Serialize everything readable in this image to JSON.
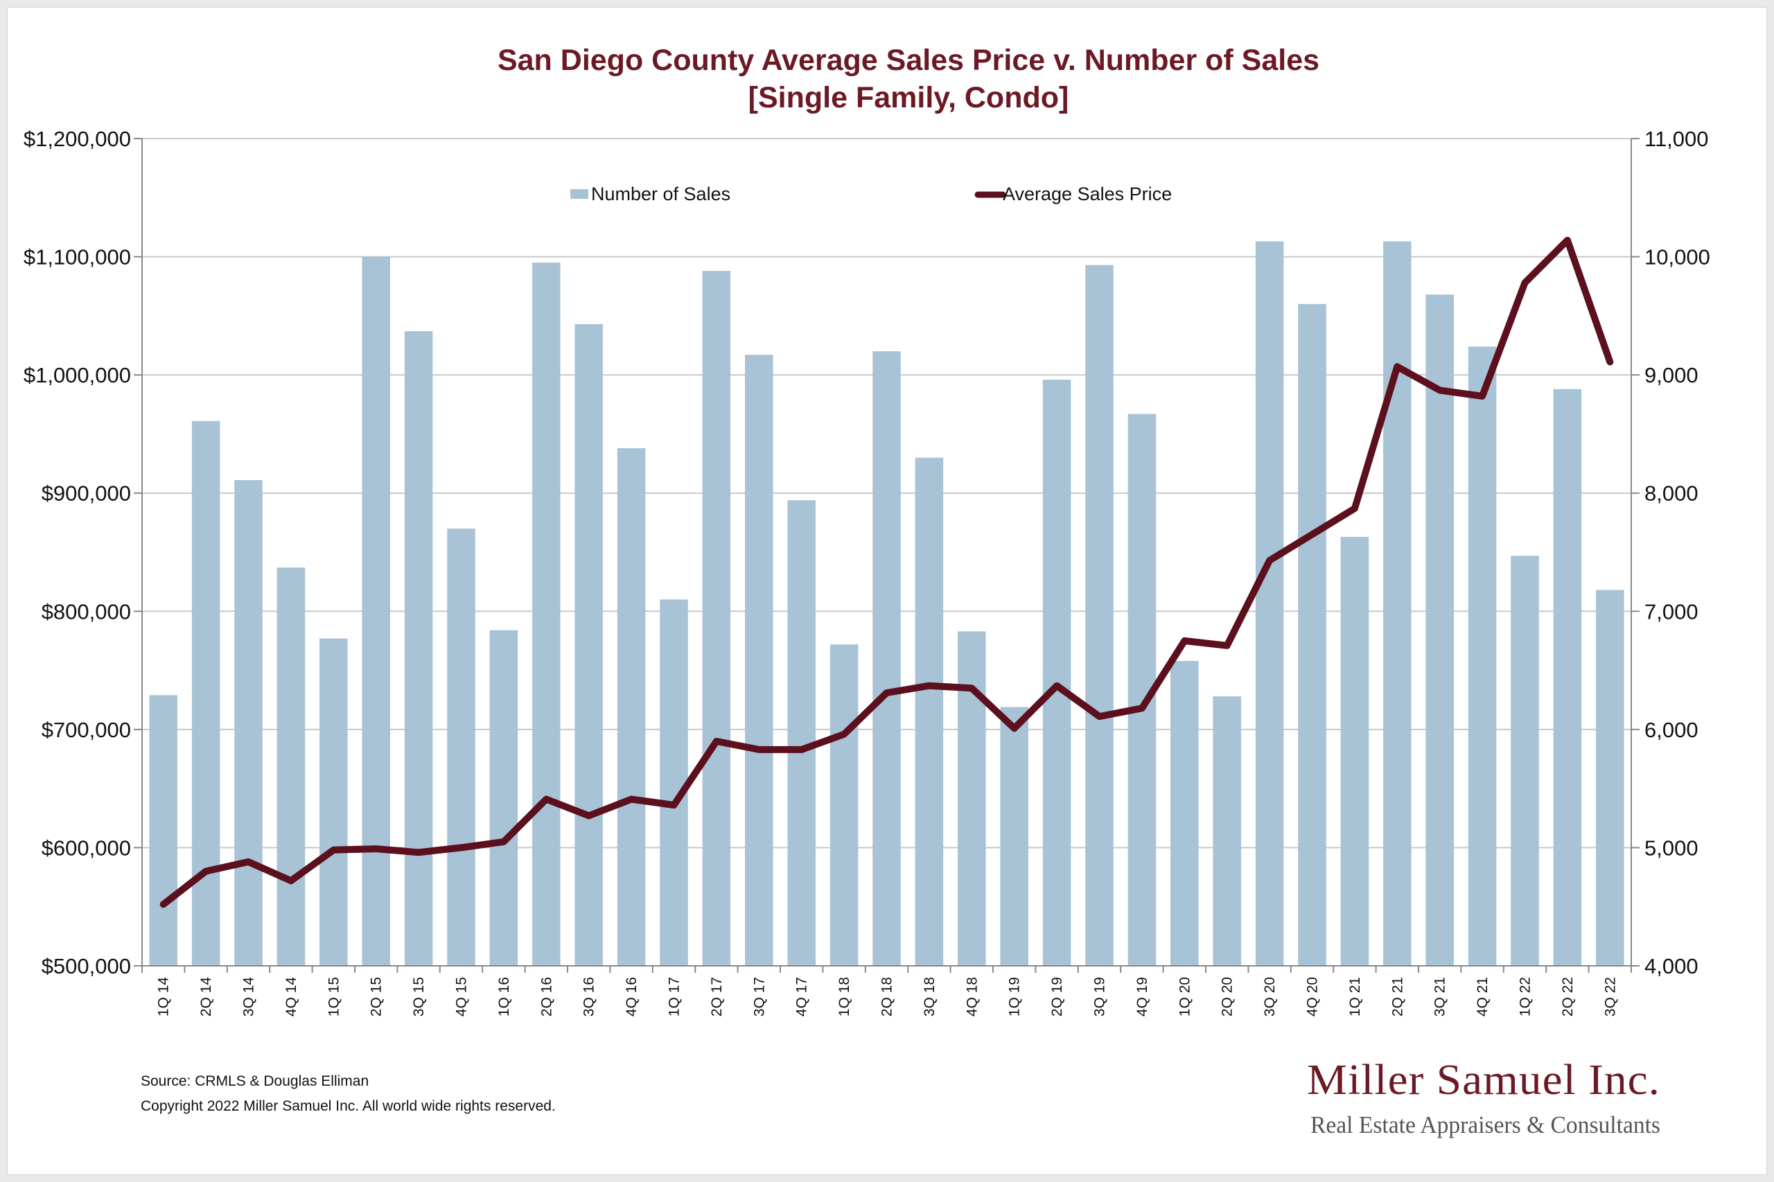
{
  "colors": {
    "bar": "#a8c2d6",
    "line": "#5c0f1c",
    "title": "#6b1a25",
    "grid": "#c9c9c9"
  },
  "chart_data": {
    "type": "bar",
    "title": "San Diego County Average Sales Price v. Number of Sales",
    "subtitle": "[Single Family, Condo]",
    "categories": [
      "1Q 14",
      "2Q 14",
      "3Q 14",
      "4Q 14",
      "1Q 15",
      "2Q 15",
      "3Q 15",
      "4Q 15",
      "1Q 16",
      "2Q 16",
      "3Q 16",
      "4Q 16",
      "1Q 17",
      "2Q 17",
      "3Q 17",
      "4Q 17",
      "1Q 18",
      "2Q 18",
      "3Q 18",
      "4Q 18",
      "1Q 19",
      "2Q 19",
      "3Q 19",
      "4Q 19",
      "1Q 20",
      "2Q 20",
      "3Q 20",
      "4Q 20",
      "1Q 21",
      "2Q 21",
      "3Q 21",
      "4Q 21",
      "1Q 22",
      "2Q 22",
      "3Q 22"
    ],
    "series": [
      {
        "name": "Number of Sales",
        "type": "bar",
        "axis": "right",
        "values": [
          6290,
          8610,
          8110,
          7370,
          6770,
          10000,
          9370,
          7700,
          6840,
          9950,
          9430,
          8380,
          7100,
          9880,
          9170,
          7940,
          6720,
          9200,
          8300,
          6830,
          6190,
          8960,
          9930,
          8670,
          6580,
          6280,
          10130,
          9600,
          7630,
          10130,
          9680,
          9240,
          7470,
          8880,
          7180
        ]
      },
      {
        "name": "Average Sales Price",
        "type": "line",
        "axis": "left",
        "values": [
          552000,
          580000,
          588000,
          572000,
          598000,
          599000,
          596000,
          600000,
          605000,
          641000,
          627000,
          641000,
          636000,
          690000,
          683000,
          683000,
          696000,
          731000,
          737000,
          735000,
          701000,
          737000,
          711000,
          718000,
          775000,
          771000,
          843000,
          865000,
          887000,
          1007000,
          987000,
          982000,
          1078000,
          1114000,
          1011000
        ]
      }
    ],
    "y_left": {
      "min": 500000,
      "max": 1200000,
      "step": 100000,
      "ticks": [
        "$500,000",
        "$600,000",
        "$700,000",
        "$800,000",
        "$900,000",
        "$1,000,000",
        "$1,100,000",
        "$1,200,000"
      ]
    },
    "y_right": {
      "min": 4000,
      "max": 11000,
      "step": 1000,
      "ticks": [
        "4,000",
        "5,000",
        "6,000",
        "7,000",
        "8,000",
        "9,000",
        "10,000",
        "11,000"
      ]
    },
    "grid": true,
    "legend_position": "top-center"
  },
  "footer": {
    "source": "Source: CRMLS & Douglas Elliman",
    "copyright": "Copyright 2022 Miller Samuel Inc.  All world wide rights reserved."
  },
  "brand": {
    "name": "Miller Samuel Inc.",
    "tagline": "Real Estate Appraisers & Consultants"
  }
}
